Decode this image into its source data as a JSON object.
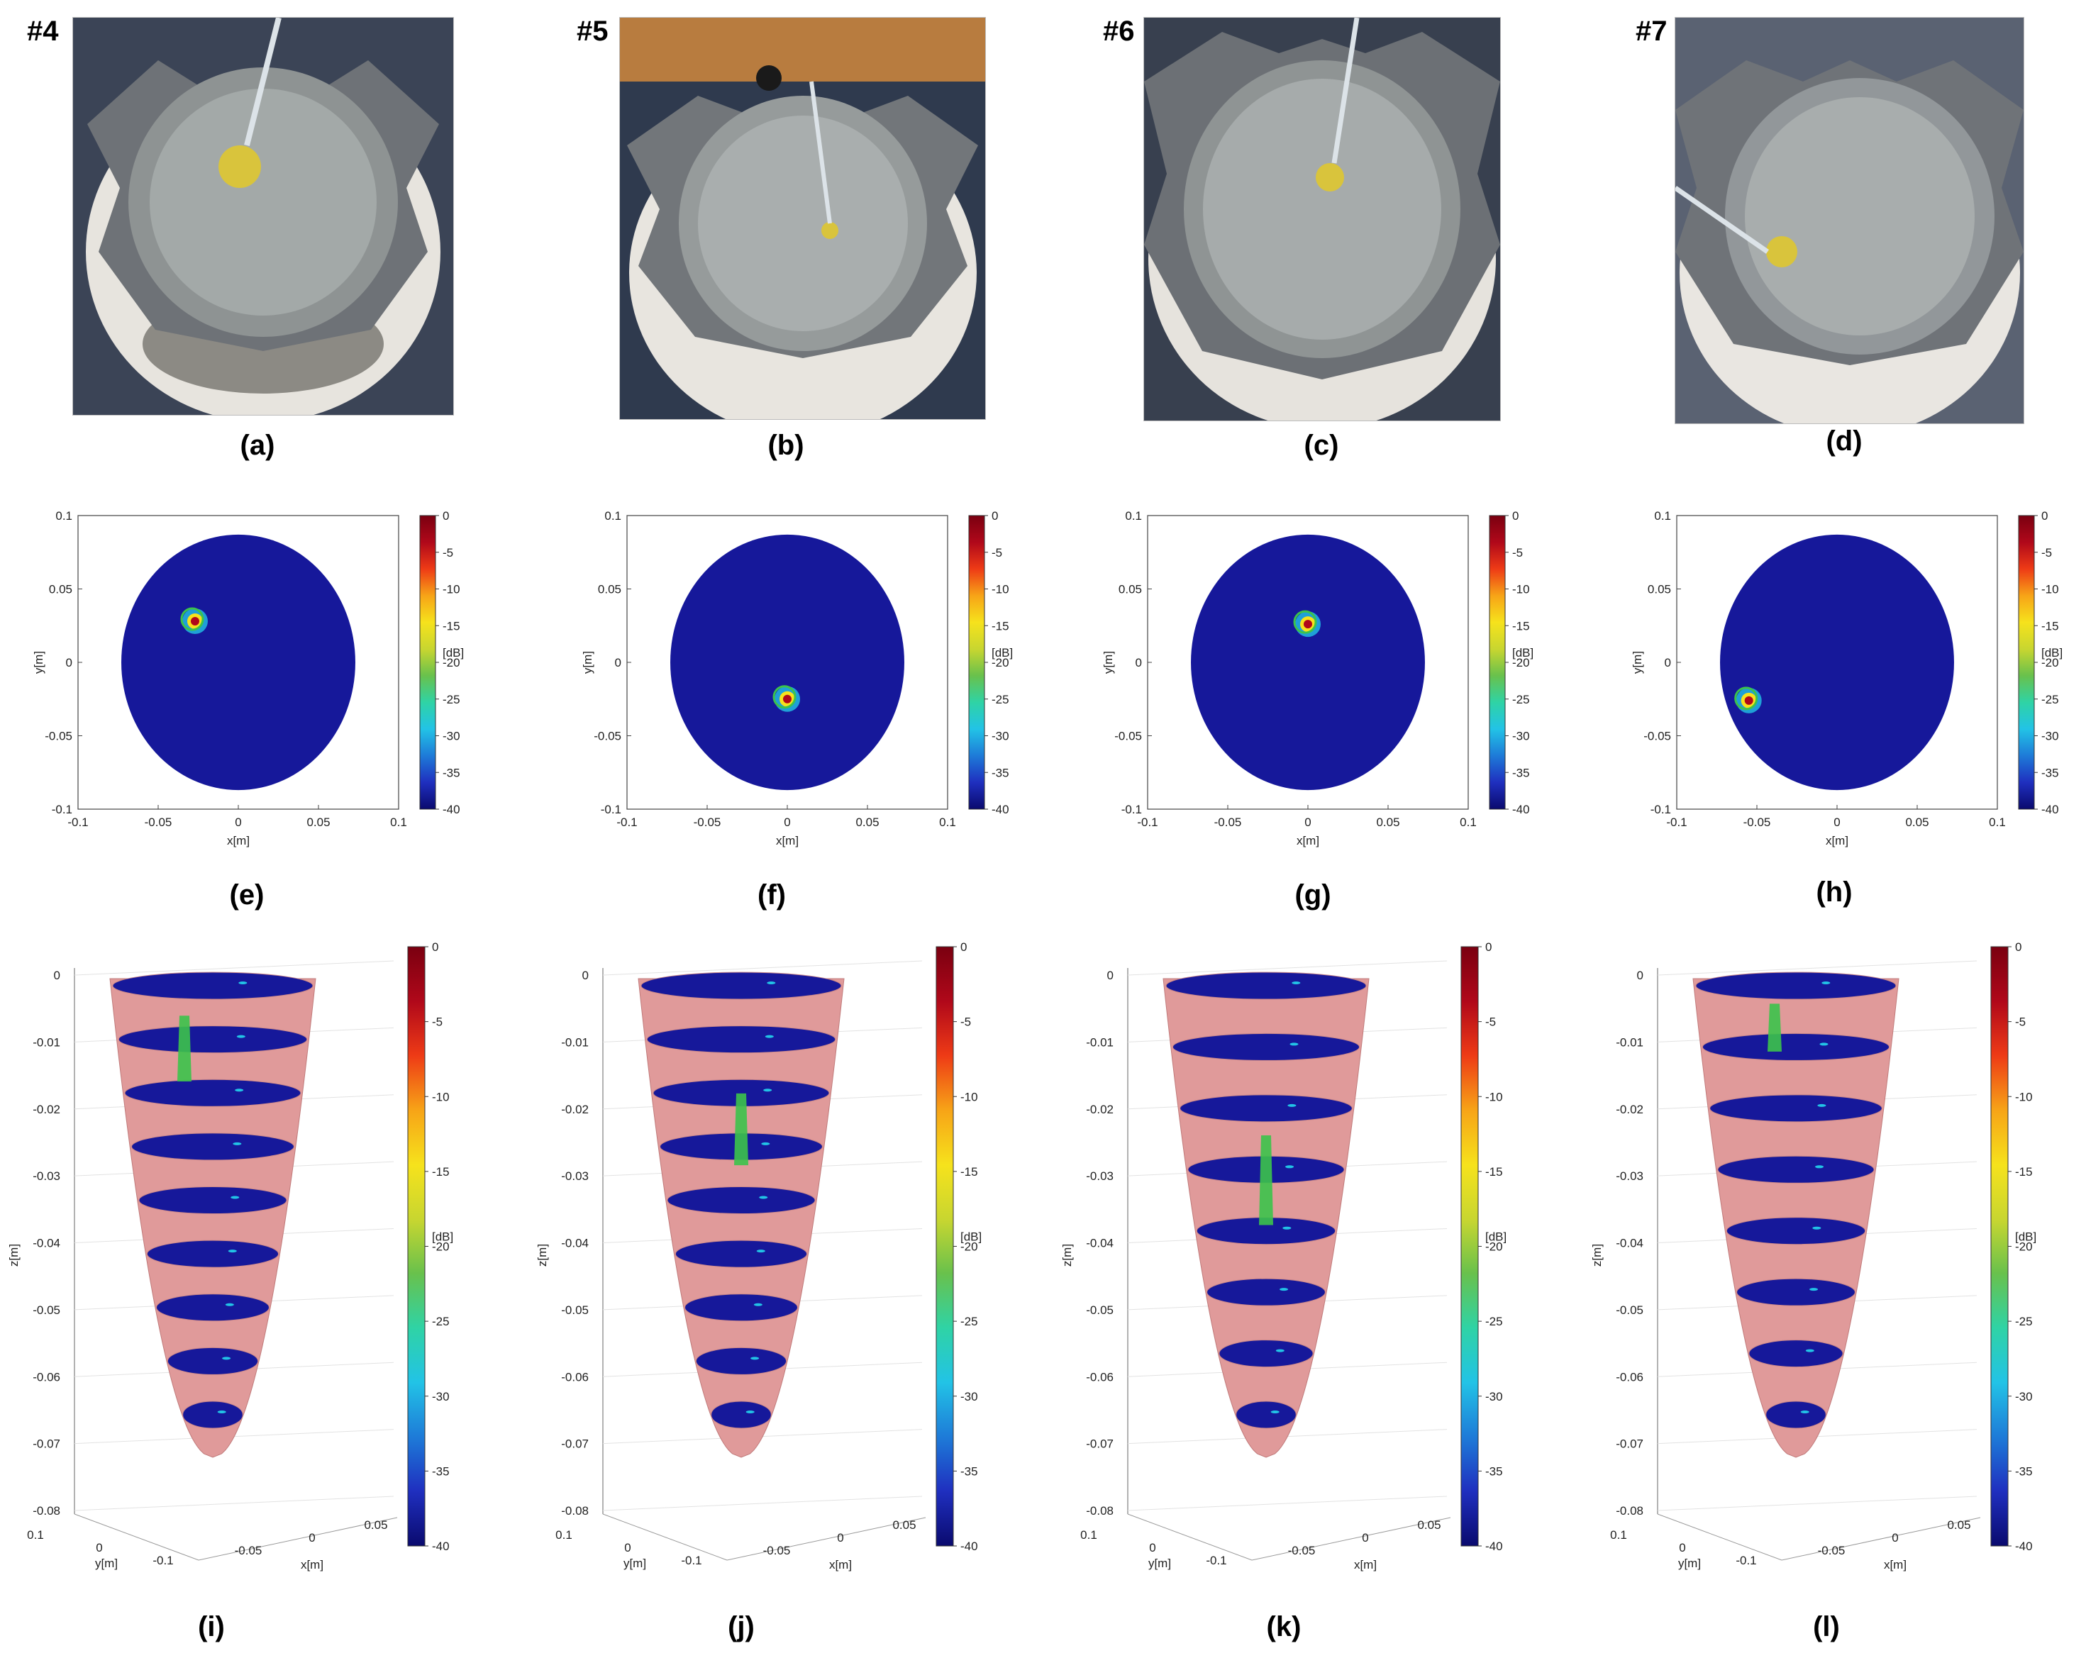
{
  "colors": {
    "colormap": [
      "#0a0a6e",
      "#1f2fbf",
      "#1e7bd8",
      "#22c3e6",
      "#2fd3a5",
      "#69c14c",
      "#c8d630",
      "#f6e21c",
      "#f7a417",
      "#ee3b16",
      "#b0081a",
      "#7a0010"
    ],
    "field": "#16189a",
    "cone": "#e09a9a",
    "target": "#3cc34b"
  },
  "photos": [
    {
      "tag": "#4",
      "caption": "(a)"
    },
    {
      "tag": "#5",
      "caption": "(b)"
    },
    {
      "tag": "#6",
      "caption": "(c)"
    },
    {
      "tag": "#7",
      "caption": "(d)"
    }
  ],
  "maps2d": {
    "x_label": "x[m]",
    "y_label": "y[m]",
    "x_ticks": [
      "-0.1",
      "-0.05",
      "0",
      "0.05",
      "0.1"
    ],
    "y_ticks": [
      "0.1",
      "0.05",
      "0",
      "-0.05",
      "-0.1"
    ],
    "cb_ticks": [
      "0",
      "-5",
      "-10",
      "-15",
      "-20",
      "-25",
      "-30",
      "-35",
      "-40"
    ],
    "cb_unit": "[dB]",
    "captions": [
      "(e)",
      "(f)",
      "(g)",
      "(h)"
    ],
    "hotspots": [
      {
        "x": -0.027,
        "y": 0.028
      },
      {
        "x": 0.0,
        "y": -0.025
      },
      {
        "x": 0.0,
        "y": 0.026
      },
      {
        "x": -0.055,
        "y": -0.026
      }
    ]
  },
  "views3d": {
    "z_label": "z[m]",
    "x_label": "x[m]",
    "y_label": "y[m]",
    "z_ticks": [
      "0",
      "-0.01",
      "-0.02",
      "-0.03",
      "-0.04",
      "-0.05",
      "-0.06",
      "-0.07",
      "-0.08"
    ],
    "x_ticks": [
      "-0.05",
      "0",
      "0.05"
    ],
    "y_ticks": [
      "0.1",
      "0",
      "-0.1"
    ],
    "cb_ticks": [
      "0",
      "-5",
      "-10",
      "-15",
      "-20",
      "-25",
      "-30",
      "-35",
      "-40"
    ],
    "cb_unit": "[dB]",
    "captions": [
      "(i)",
      "(j)",
      "(k)",
      "(l)"
    ],
    "slice_counts": [
      9,
      9,
      8,
      8
    ],
    "target_depth": [
      {
        "from": -0.005,
        "to": -0.016
      },
      {
        "from": -0.018,
        "to": -0.03
      },
      {
        "from": -0.025,
        "to": -0.04
      },
      {
        "from": -0.003,
        "to": -0.011
      }
    ]
  }
}
